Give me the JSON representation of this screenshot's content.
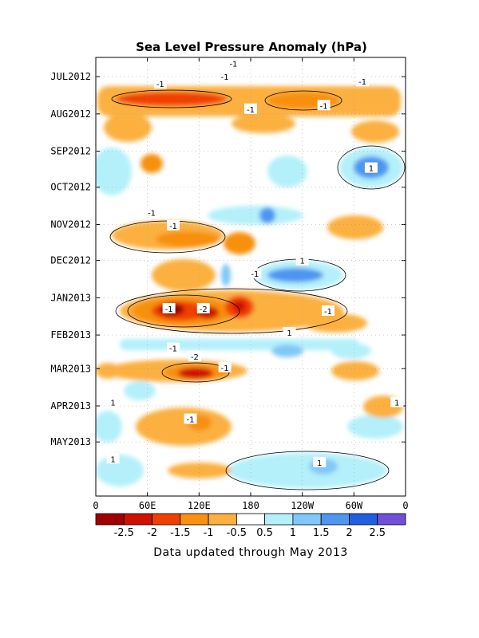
{
  "chart_data": {
    "type": "heatmap",
    "title": "Sea Level Pressure Anomaly (hPa)",
    "footer": "Data updated through May 2013",
    "x_ticks": [
      "0",
      "60E",
      "120E",
      "180",
      "120W",
      "60W",
      "0"
    ],
    "y_ticks": [
      "JUL2012",
      "AUG2012",
      "SEP2012",
      "OCT2012",
      "NOV2012",
      "DEC2012",
      "JAN2013",
      "FEB2013",
      "MAR2013",
      "APR2013",
      "MAY2013"
    ],
    "colorbar": {
      "labels": [
        "-2.5",
        "-2",
        "-1.5",
        "-1",
        "-0.5",
        "0.5",
        "1",
        "1.5",
        "2",
        "2.5"
      ],
      "colors": [
        "#a00000",
        "#d01000",
        "#f04000",
        "#f89010",
        "#fbb040",
        "#ffffff",
        "#b4f0fa",
        "#80c8f8",
        "#4e96f0",
        "#2060e0",
        "#7050d8"
      ]
    },
    "contour_labels": [
      {
        "text": "-1",
        "lon": 160,
        "date": "2012-06-20"
      },
      {
        "text": "-1",
        "lon": 150,
        "date": "2012-07-01"
      },
      {
        "text": "-1",
        "lon": 75,
        "date": "2012-07-07"
      },
      {
        "text": "-1",
        "lon": 310,
        "date": "2012-07-05"
      },
      {
        "text": "-1",
        "lon": 180,
        "date": "2012-07-28"
      },
      {
        "text": "-1",
        "lon": 265,
        "date": "2012-07-25"
      },
      {
        "text": "1",
        "lon": 320,
        "date": "2012-09-15"
      },
      {
        "text": "-1",
        "lon": 65,
        "date": "2012-10-22"
      },
      {
        "text": "-1",
        "lon": 90,
        "date": "2012-11-02"
      },
      {
        "text": "1",
        "lon": 240,
        "date": "2012-12-01"
      },
      {
        "text": "-1",
        "lon": 185,
        "date": "2012-12-12"
      },
      {
        "text": "-1",
        "lon": 85,
        "date": "2013-01-10"
      },
      {
        "text": "-2",
        "lon": 125,
        "date": "2013-01-10"
      },
      {
        "text": "-1",
        "lon": 270,
        "date": "2013-01-12"
      },
      {
        "text": "1",
        "lon": 225,
        "date": "2013-01-30"
      },
      {
        "text": "-1",
        "lon": 90,
        "date": "2013-02-12"
      },
      {
        "text": "-2",
        "lon": 115,
        "date": "2013-02-19"
      },
      {
        "text": "-1",
        "lon": 150,
        "date": "2013-02-28"
      },
      {
        "text": "1",
        "lon": 20,
        "date": "2013-03-29"
      },
      {
        "text": "1",
        "lon": 350,
        "date": "2013-03-29"
      },
      {
        "text": "-1",
        "lon": 110,
        "date": "2013-04-12"
      },
      {
        "text": "1",
        "lon": 20,
        "date": "2013-05-15"
      },
      {
        "text": "1",
        "lon": 260,
        "date": "2013-05-18"
      }
    ],
    "xlim_lon": [
      0,
      360
    ],
    "ylim_date": [
      "2012-06-15",
      "2013-06-15"
    ]
  }
}
